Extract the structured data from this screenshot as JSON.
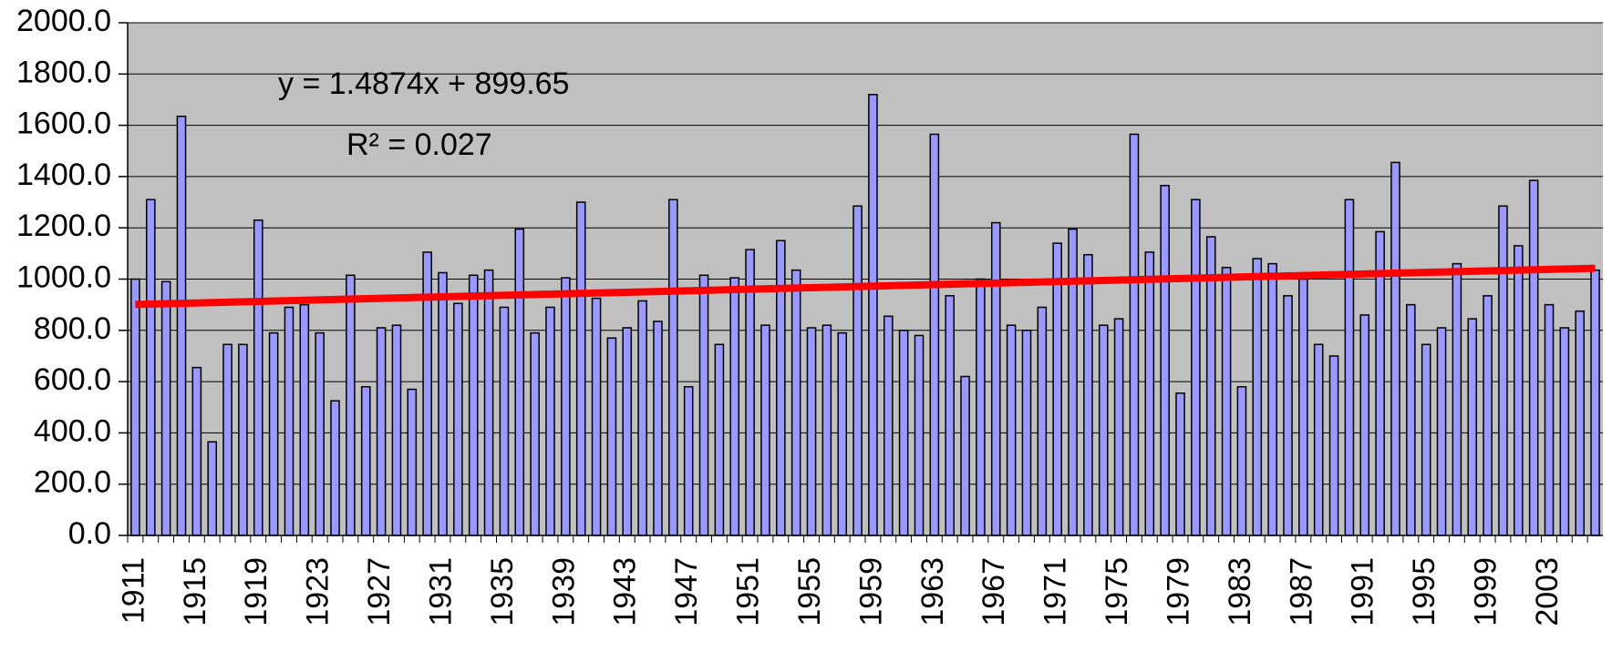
{
  "chart_data": {
    "type": "bar",
    "equation": "y = 1.4874x + 899.65",
    "r_squared": "R² = 0.027",
    "categories": [
      "1911",
      null,
      null,
      null,
      "1915",
      null,
      null,
      null,
      "1919",
      null,
      null,
      null,
      "1923",
      null,
      null,
      null,
      "1927",
      null,
      null,
      null,
      "1931",
      null,
      null,
      null,
      "1935",
      null,
      null,
      null,
      "1939",
      null,
      null,
      null,
      "1943",
      null,
      null,
      null,
      "1947",
      null,
      null,
      null,
      "1951",
      null,
      null,
      null,
      "1955",
      null,
      null,
      null,
      "1959",
      null,
      null,
      null,
      "1963",
      null,
      null,
      null,
      "1967",
      null,
      null,
      null,
      "1971",
      null,
      null,
      null,
      "1975",
      null,
      null,
      null,
      "1979",
      null,
      null,
      null,
      "1983",
      null,
      null,
      null,
      "1987",
      null,
      null,
      null,
      "1991",
      null,
      null,
      null,
      "1995",
      null,
      null,
      null,
      "1999",
      null,
      null,
      null,
      "2003",
      null,
      null,
      null
    ],
    "values": [
      1000,
      1310,
      990,
      1635,
      655,
      365,
      745,
      745,
      1230,
      790,
      890,
      900,
      790,
      525,
      1015,
      580,
      810,
      820,
      570,
      1105,
      1025,
      905,
      1015,
      1035,
      890,
      1195,
      790,
      890,
      1005,
      1300,
      925,
      770,
      810,
      915,
      835,
      1310,
      580,
      1015,
      745,
      1005,
      1115,
      820,
      1150,
      1035,
      810,
      820,
      790,
      1285,
      1720,
      855,
      800,
      780,
      1565,
      935,
      620,
      1000,
      1220,
      820,
      800,
      890,
      1140,
      1195,
      1095,
      820,
      845,
      1565,
      1105,
      1365,
      555,
      1310,
      1165,
      1045,
      580,
      1080,
      1060,
      935,
      1000,
      745,
      700,
      1310,
      860,
      1185,
      1455,
      900,
      745,
      810,
      1060,
      845,
      935,
      1285,
      1130,
      1385,
      900,
      810,
      875,
      1035
    ],
    "color": "#9999ff",
    "trendline": {
      "values": [
        901.1,
        1042.4
      ],
      "color": "#ff0000"
    },
    "ylim": [
      0,
      2000
    ],
    "yticks": [
      {
        "value": 0,
        "label": "0.0"
      },
      {
        "value": 200,
        "label": "200.0"
      },
      {
        "value": 400,
        "label": "400.0"
      },
      {
        "value": 600,
        "label": "600.0"
      },
      {
        "value": 800,
        "label": "800.0"
      },
      {
        "value": 1000,
        "label": "1000.0"
      },
      {
        "value": 1200,
        "label": "1200.0"
      },
      {
        "value": 1400,
        "label": "1400.0"
      },
      {
        "value": 1600,
        "label": "1600.0"
      },
      {
        "value": 1800,
        "label": "1800.0"
      },
      {
        "value": 2000,
        "label": "2000.0"
      }
    ],
    "grid": true,
    "plot_background": "#c0c0c0"
  }
}
